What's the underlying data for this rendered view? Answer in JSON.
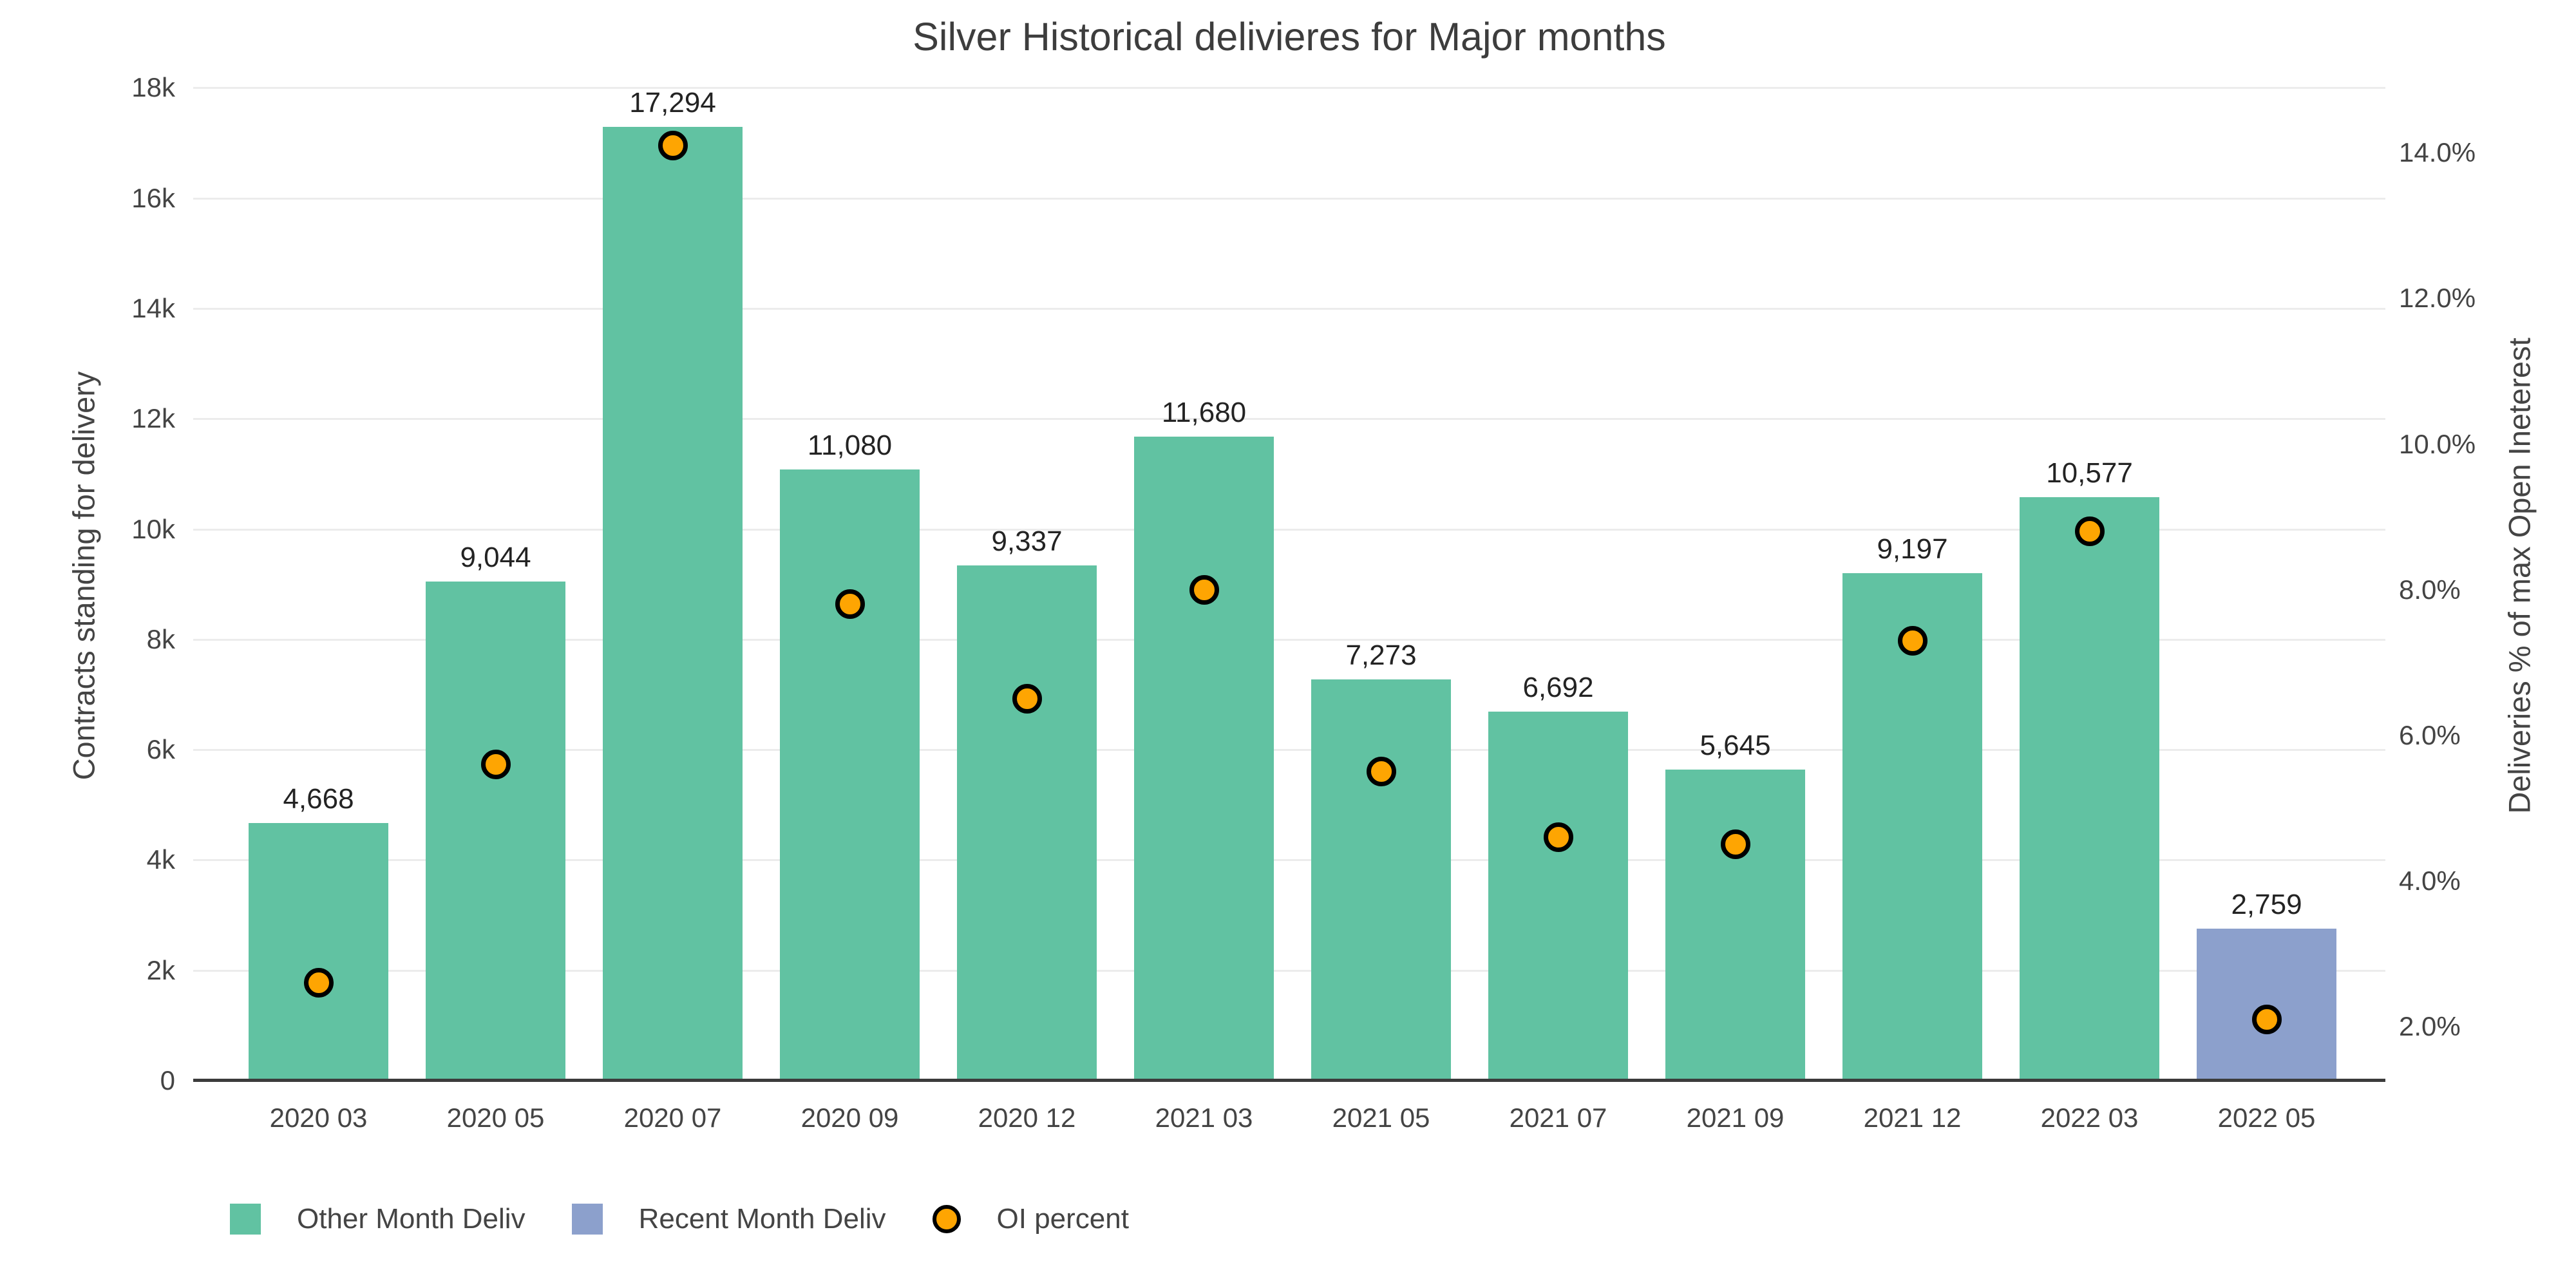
{
  "title": "Silver Historical delivieres for Major months",
  "colors": {
    "other_month_bar": "#61C2A2",
    "recent_month_bar": "#8CA0CC",
    "oi_dot_fill": "#FEA502",
    "oi_dot_stroke": "#000000",
    "gridline": "#ececec",
    "axis_line": "#3c3c3c",
    "text": "#444444"
  },
  "axes": {
    "left": {
      "title": "Contracts standing for delivery",
      "tick_labels": [
        "0",
        "2k",
        "4k",
        "6k",
        "8k",
        "10k",
        "12k",
        "14k",
        "16k",
        "18k"
      ],
      "tick_values": [
        0,
        2000,
        4000,
        6000,
        8000,
        10000,
        12000,
        14000,
        16000,
        18000
      ]
    },
    "right": {
      "title": "Deliveries % of max Open Ineterest",
      "tick_labels": [
        "2.0%",
        "4.0%",
        "6.0%",
        "8.0%",
        "10.0%",
        "12.0%",
        "14.0%"
      ],
      "tick_values": [
        2,
        4,
        6,
        8,
        10,
        12,
        14
      ]
    }
  },
  "legend": {
    "items": [
      {
        "label": "Other Month Deliv",
        "shape": "square",
        "color": "#61C2A2"
      },
      {
        "label": "Recent Month Deliv",
        "shape": "square",
        "color": "#8CA0CC"
      },
      {
        "label": "OI percent",
        "shape": "circle",
        "color": "#FEA502"
      }
    ]
  },
  "chart_data": {
    "type": "combo",
    "categories": [
      "2020 03",
      "2020 05",
      "2020 07",
      "2020 09",
      "2020 12",
      "2021 03",
      "2021 05",
      "2021 07",
      "2021 09",
      "2021 12",
      "2022 03",
      "2022 05"
    ],
    "series": [
      {
        "name": "Other Month Deliv",
        "type": "bar",
        "axis": "left",
        "color": "#61C2A2",
        "values": [
          4668,
          9044,
          17294,
          11080,
          9337,
          11680,
          7273,
          6692,
          5645,
          9197,
          10577,
          null
        ]
      },
      {
        "name": "Recent Month Deliv",
        "type": "bar",
        "axis": "left",
        "color": "#8CA0CC",
        "values": [
          null,
          null,
          null,
          null,
          null,
          null,
          null,
          null,
          null,
          null,
          null,
          2759
        ]
      },
      {
        "name": "OI percent",
        "type": "scatter",
        "axis": "right",
        "color": "#FEA502",
        "values": [
          2.6,
          5.6,
          14.1,
          7.8,
          6.5,
          8.0,
          5.5,
          4.6,
          4.5,
          7.3,
          8.8,
          2.1
        ]
      }
    ],
    "bar_value_labels": [
      "4,668",
      "9,044",
      "17,294",
      "11,080",
      "9,337",
      "11,680",
      "7,273",
      "6,692",
      "5,645",
      "9,197",
      "10,577",
      "2,759"
    ],
    "title": "Silver Historical delivieres for Major months",
    "xlabel": "",
    "ylabel_left": "Contracts standing for delivery",
    "ylabel_right": "Deliveries % of max Open Ineterest",
    "ylim_left": [
      0,
      18310
    ],
    "ylim_right": [
      1.3,
      15.1
    ],
    "grid": true,
    "legend_position": "bottom-left"
  }
}
